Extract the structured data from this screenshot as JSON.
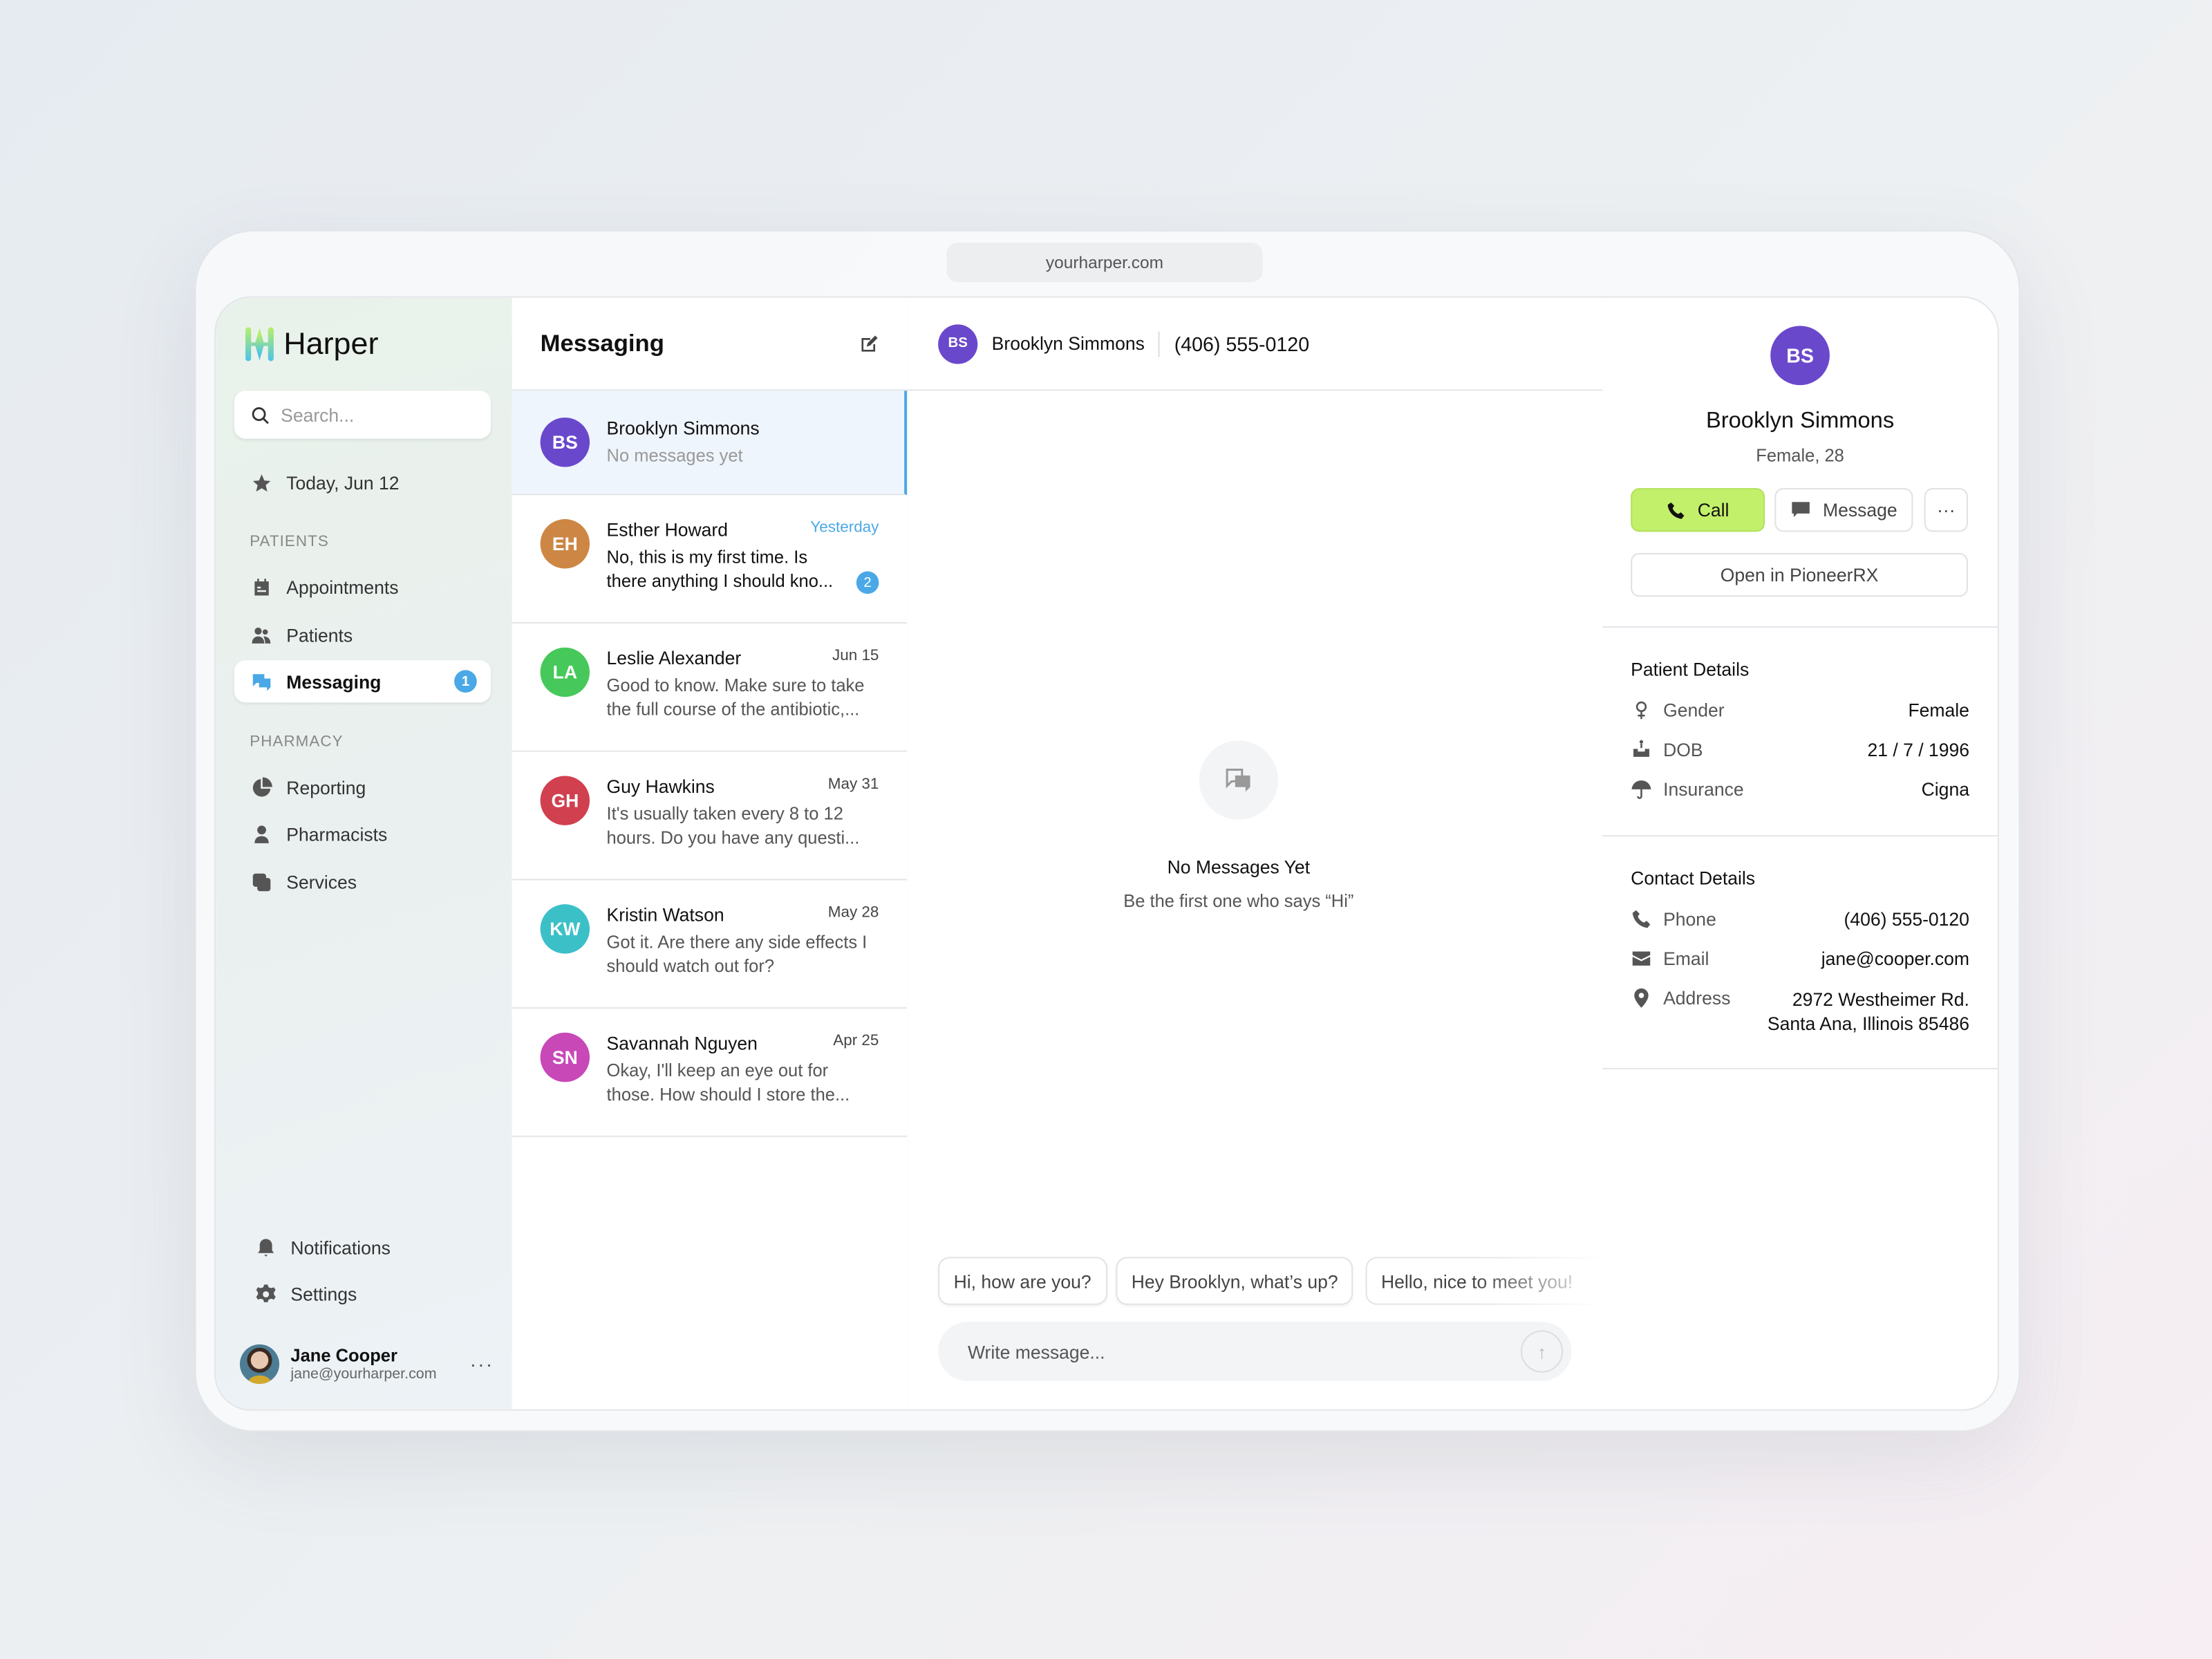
{
  "browser": {
    "url": "yourharper.com"
  },
  "sidebar": {
    "brand": "Harper",
    "search_placeholder": "Search...",
    "today": "Today, Jun 12",
    "sections": {
      "patients": "PATIENTS",
      "pharmacy": "PHARMACY"
    },
    "patients_items": [
      {
        "label": "Appointments",
        "icon": "calendar-icon"
      },
      {
        "label": "Patients",
        "icon": "users-icon"
      },
      {
        "label": "Messaging",
        "icon": "chat-icon",
        "badge": "1",
        "active": true
      }
    ],
    "pharmacy_items": [
      {
        "label": "Reporting",
        "icon": "pie-chart-icon"
      },
      {
        "label": "Pharmacists",
        "icon": "pharmacist-icon"
      },
      {
        "label": "Services",
        "icon": "services-icon"
      }
    ],
    "bottom_items": [
      {
        "label": "Notifications",
        "icon": "bell-icon"
      },
      {
        "label": "Settings",
        "icon": "gear-icon"
      }
    ],
    "user": {
      "name": "Jane Cooper",
      "email": "jane@yourharper.com"
    }
  },
  "messaging": {
    "title": "Messaging",
    "conversations": [
      {
        "initials": "BS",
        "name": "Brooklyn Simmons",
        "preview": "No messages yet",
        "date": "",
        "color": "#6a48cc",
        "selected": true
      },
      {
        "initials": "EH",
        "name": "Esther Howard",
        "preview": "No, this is my first time. Is there anything I should kno...",
        "date": "Yesterday",
        "color": "#cd8644",
        "unread": "2"
      },
      {
        "initials": "LA",
        "name": "Leslie Alexander",
        "preview": "Good to know. Make sure to take the full course of the antibiotic,...",
        "date": "Jun 15",
        "color": "#47c85a"
      },
      {
        "initials": "GH",
        "name": "Guy Hawkins",
        "preview": "It's usually taken every 8 to 12 hours. Do you have any questi...",
        "date": "May 31",
        "color": "#d0404f"
      },
      {
        "initials": "KW",
        "name": "Kristin Watson",
        "preview": "Got it. Are there any side effects I should watch out for?",
        "date": "May 28",
        "color": "#3cc0c8"
      },
      {
        "initials": "SN",
        "name": "Savannah Nguyen",
        "preview": "Okay, I'll keep an eye out for those. How should I store the...",
        "date": "Apr 25",
        "color": "#c848b8"
      }
    ]
  },
  "chat": {
    "initials": "BS",
    "name": "Brooklyn Simmons",
    "phone": "(406) 555-0120",
    "empty_title": "No Messages Yet",
    "empty_subtitle": "Be the first one who says “Hi”",
    "suggestions": [
      "Hi, how are you?",
      "Hey Brooklyn, what’s up?",
      "Hello, nice to meet you!"
    ],
    "input_placeholder": "Write message..."
  },
  "details": {
    "initials": "BS",
    "name": "Brooklyn Simmons",
    "subtitle": "Female, 28",
    "call": "Call",
    "message": "Message",
    "more": "···",
    "open": "Open in PioneerRX",
    "patient_title": "Patient Details",
    "patient": [
      {
        "label": "Gender",
        "value": "Female"
      },
      {
        "label": "DOB",
        "value": "21 / 7 / 1996"
      },
      {
        "label": "Insurance",
        "value": "Cigna"
      }
    ],
    "contact_title": "Contact Details",
    "contact": [
      {
        "label": "Phone",
        "value": "(406) 555-0120"
      },
      {
        "label": "Email",
        "value": "jane@cooper.com"
      },
      {
        "label": "Address",
        "value": "2972 Westheimer Rd.",
        "value2": "Santa Ana, Illinois 85486"
      }
    ]
  },
  "colors": {
    "accent": "#4aa8e6",
    "call": "#c3f06a",
    "avatar_bs": "#6a48cc"
  }
}
